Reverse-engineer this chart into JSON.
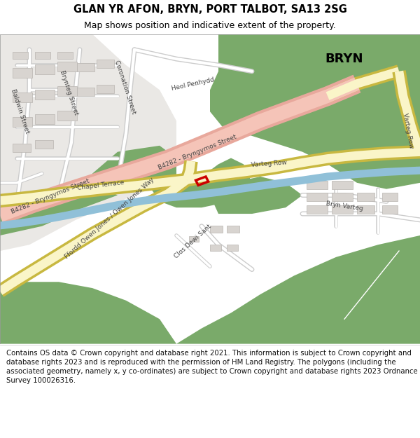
{
  "title_line1": "GLAN YR AFON, BRYN, PORT TALBOT, SA13 2SG",
  "title_line2": "Map shows position and indicative extent of the property.",
  "footer": "Contains OS data © Crown copyright and database right 2021. This information is subject to Crown copyright and database rights 2023 and is reproduced with the permission of HM Land Registry. The polygons (including the associated geometry, namely x, y co-ordinates) are subject to Crown copyright and database rights 2023 Ordnance Survey 100026316.",
  "bg_color": "#ffffff",
  "map_bg": "#f0eeec",
  "road_salmon_outer": "#e8a89c",
  "road_salmon_inner": "#f5c4b8",
  "road_yellow_outer": "#c8b840",
  "road_yellow_inner": "#faf5c8",
  "green_area": "#7aaa6a",
  "river_blue": "#90c0d8",
  "building_fill": "#d8d4d0",
  "building_edge": "#b8b4b0",
  "plot_red": "#cc0000",
  "white_road": "#ffffff",
  "white_road_edge": "#cccccc",
  "text_dark": "#222222",
  "text_road": "#444444"
}
